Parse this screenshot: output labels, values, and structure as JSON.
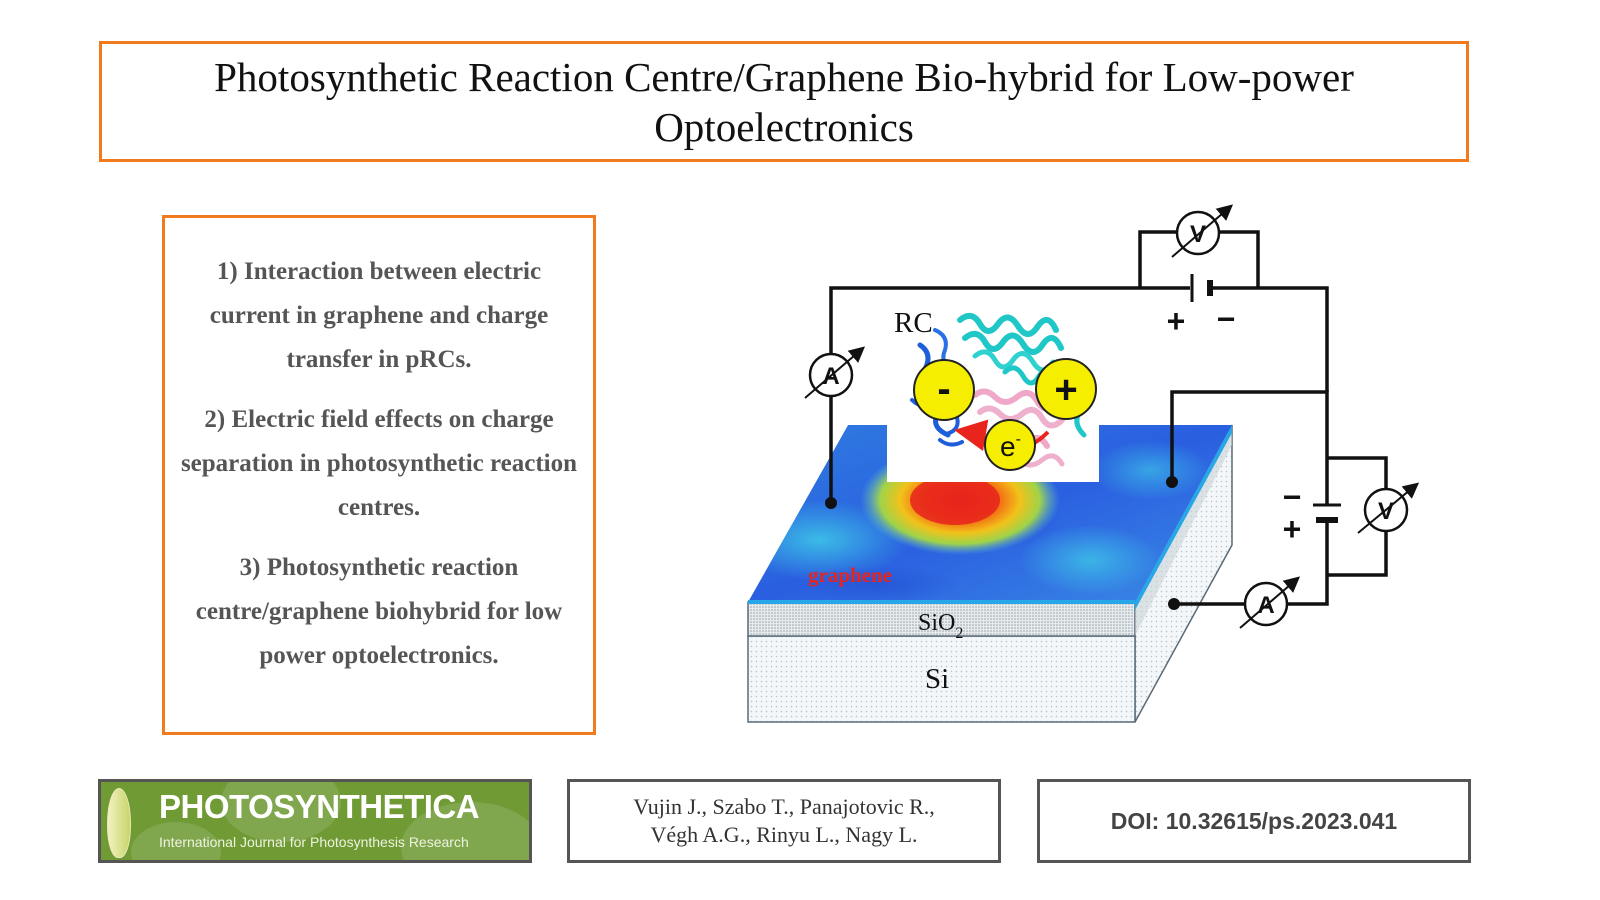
{
  "title": "Photosynthetic Reaction Centre/Graphene Bio-hybrid for Low-power Optoelectronics",
  "points": [
    "1) Interaction between electric current in graphene and charge transfer in pRCs.",
    "2) Electric field effects on charge separation in photosynthetic reaction centres.",
    "3) Photosynthetic reaction centre/graphene biohybrid for low power optoelectronics."
  ],
  "diagram": {
    "rc_label": "RC",
    "minus_sign": "-",
    "plus_sign": "+",
    "electron_label": "e",
    "electron_sup": "-",
    "graphene_label": "graphene",
    "sio2_label": "SiO",
    "sio2_sub": "2",
    "si_label": "Si",
    "voltmeter": "V",
    "ammeter": "A",
    "battery_plus": "+",
    "battery_minus": "−",
    "colors": {
      "orange": "#f07a1e",
      "graphene_red": "#e8241c",
      "ball_yellow": "#f6ee00"
    }
  },
  "footer": {
    "journal_name": "PHOTOSYNTHETICA",
    "journal_subtitle": "International Journal for Photosynthesis Research",
    "authors_line1": "Vujin J., Szabo T., Panajotovic R.,",
    "authors_line2": "Végh A.G., Rinyu L., Nagy L.",
    "doi": "DOI: 10.32615/ps.2023.041"
  }
}
